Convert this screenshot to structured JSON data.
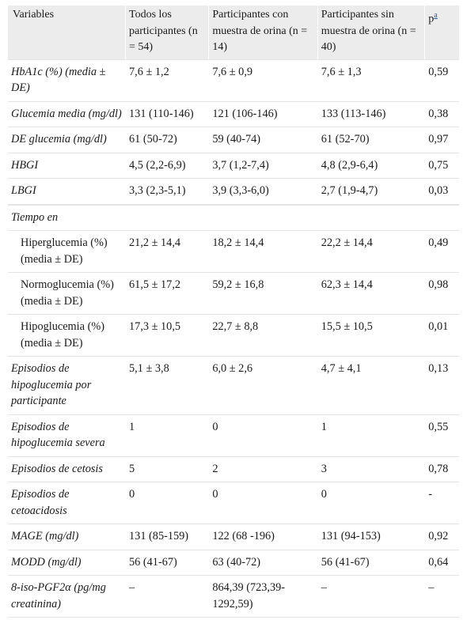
{
  "header": {
    "col1": "Variables",
    "col2": "Todos los participantes (n = 54)",
    "col3": "Participantes con muestra de orina (n = 14)",
    "col4": "Participantes sin muestra de orina (n = 40)",
    "col5": "p",
    "col5_sup": "a"
  },
  "rows": [
    {
      "label": "HbA1c (%) (media ± DE)",
      "all": "7,6 ± 1,2",
      "with": "7,6 ± 0,9",
      "without": "7,6 ± 1,3",
      "p": "0,59"
    },
    {
      "label": "Glucemia media (mg/dl)",
      "all": "131 (110-146)",
      "with": "121 (106-146)",
      "without": "133 (113-146)",
      "p": "0,38"
    },
    {
      "label": "DE glucemia (mg/dl)",
      "all": "61 (50-72)",
      "with": "59 (40-74)",
      "without": "61 (52-70)",
      "p": "0,97"
    },
    {
      "label": "HBGI",
      "all": "4,5 (2,2-6,9)",
      "with": "3,7 (1,2-7,4)",
      "without": "4,8 (2,9-6,4)",
      "p": "0,75"
    },
    {
      "label": "LBGI",
      "all": "3,3 (2,3-5,1)",
      "with": "3,9 (3,3-6,0)",
      "without": "2,7 (1,9-4,7)",
      "p": "0,03"
    }
  ],
  "section": "Tiempo en",
  "time_rows": [
    {
      "label": "Hiperglucemia (%) (media ± DE)",
      "all": "21,2 ± 14,4",
      "with": "18,2 ± 14,4",
      "without": "22,2 ± 14,4",
      "p": "0,49"
    },
    {
      "label": "Normoglucemia (%) (media ± DE)",
      "all": "61,5 ± 17,2",
      "with": "59,2 ± 16,8",
      "without": "62,3 ± 14,4",
      "p": "0,98"
    },
    {
      "label": "Hipoglucemia (%) (media ± DE)",
      "all": "17,3 ± 10,5",
      "with": "22,7 ± 8,8",
      "without": "15,5 ± 10,5",
      "p": "0,01"
    }
  ],
  "rows2": [
    {
      "label": "Episodios de hipoglucemia por participante",
      "all": "5,1 ± 3,8",
      "with": "6,0 ± 2,6",
      "without": "4,7 ± 4,1",
      "p": "0,13"
    },
    {
      "label": "Episodios de hipoglucemia severa",
      "all": "1",
      "with": "0",
      "without": "1",
      "p": "0,55"
    },
    {
      "label": "Episodios de cetosis",
      "all": "5",
      "with": "2",
      "without": "3",
      "p": "0,78"
    },
    {
      "label": "Episodios de cetoacidosis",
      "all": "0",
      "with": "0",
      "without": "0",
      "p": "-"
    },
    {
      "label": "MAGE (mg/dl)",
      "all": "131 (85-159)",
      "with": "122 (68 -196)",
      "without": "131 (94-153)",
      "p": "0,92"
    },
    {
      "label": "MODD (mg/dl)",
      "all": "56 (41-67)",
      "with": "63 (40-72)",
      "without": "56 (41-67)",
      "p": "0,64"
    },
    {
      "label": "8-iso-PGF2α (pg/mg creatinina)",
      "all": "–",
      "with": "864,39 (723,39-1292,59)",
      "without": "–",
      "p": "–"
    }
  ]
}
